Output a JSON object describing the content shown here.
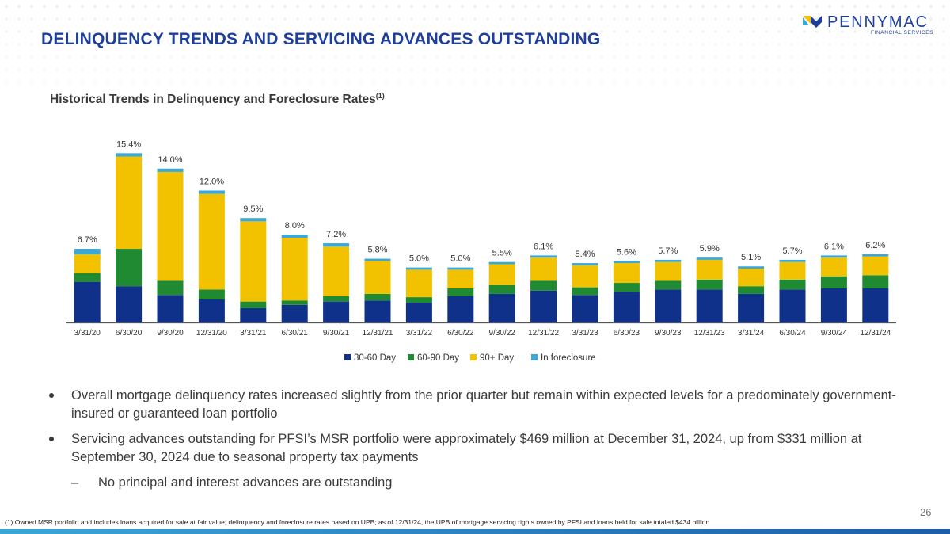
{
  "header": {
    "title": "DELINQUENCY TRENDS AND SERVICING ADVANCES OUTSTANDING",
    "logo_name": "PENNYMAC",
    "logo_sub": "FINANCIAL SERVICES"
  },
  "chart_title": {
    "text": "Historical Trends in Delinquency and Foreclosure Rates",
    "superscript": "(1)"
  },
  "chart_data": {
    "type": "bar",
    "stacked": true,
    "title": "Historical Trends in Delinquency and Foreclosure Rates(1)",
    "categories": [
      "3/31/20",
      "6/30/20",
      "9/30/20",
      "12/31/20",
      "3/31/21",
      "6/30/21",
      "9/30/21",
      "12/31/21",
      "3/31/22",
      "6/30/22",
      "9/30/22",
      "12/31/22",
      "3/31/23",
      "6/30/23",
      "9/30/23",
      "12/31/23",
      "3/31/24",
      "6/30/24",
      "9/30/24",
      "12/31/24"
    ],
    "totals_labels": [
      "6.7%",
      "15.4%",
      "14.0%",
      "12.0%",
      "9.5%",
      "8.0%",
      "7.2%",
      "5.8%",
      "5.0%",
      "5.0%",
      "5.5%",
      "6.1%",
      "5.4%",
      "5.6%",
      "5.7%",
      "5.9%",
      "5.1%",
      "5.7%",
      "6.1%",
      "6.2%"
    ],
    "totals": [
      6.7,
      15.4,
      14.0,
      12.0,
      9.5,
      8.0,
      7.2,
      5.8,
      5.0,
      5.0,
      5.5,
      6.1,
      5.4,
      5.6,
      5.7,
      5.9,
      5.1,
      5.7,
      6.1,
      6.2
    ],
    "series": [
      {
        "name": "30-60 Day",
        "color": "#10318a",
        "values": [
          3.7,
          3.3,
          2.5,
          2.1,
          1.3,
          1.6,
          1.9,
          2.0,
          1.8,
          2.4,
          2.6,
          2.9,
          2.5,
          2.8,
          3.0,
          3.0,
          2.6,
          3.0,
          3.1,
          3.1
        ]
      },
      {
        "name": "60-90 Day",
        "color": "#1f8a32",
        "values": [
          0.8,
          3.4,
          1.3,
          0.9,
          0.6,
          0.4,
          0.5,
          0.6,
          0.5,
          0.7,
          0.8,
          0.9,
          0.7,
          0.8,
          0.8,
          0.9,
          0.7,
          0.9,
          1.1,
          1.2
        ]
      },
      {
        "name": "90+ Day",
        "color": "#f2c200",
        "values": [
          1.7,
          8.4,
          9.9,
          8.7,
          7.3,
          5.7,
          4.5,
          3.0,
          2.5,
          1.7,
          1.9,
          2.1,
          2.0,
          1.8,
          1.7,
          1.8,
          1.6,
          1.6,
          1.7,
          1.7
        ]
      },
      {
        "name": "In foreclosure",
        "color": "#3aa8d8",
        "values": [
          0.5,
          0.3,
          0.3,
          0.3,
          0.3,
          0.3,
          0.3,
          0.2,
          0.2,
          0.2,
          0.2,
          0.2,
          0.2,
          0.2,
          0.2,
          0.2,
          0.2,
          0.2,
          0.2,
          0.2
        ]
      }
    ],
    "ylim": [
      0,
      16
    ],
    "legend_position": "bottom-center",
    "grid": false
  },
  "bullets": [
    "Overall mortgage delinquency rates increased slightly from the prior quarter but remain within expected levels for a predominately government-insured or guaranteed loan portfolio",
    "Servicing advances outstanding for PFSI’s MSR portfolio were approximately $469 million at December 31, 2024, up from $331 million at September 30, 2024 due to seasonal property tax payments"
  ],
  "sub_bullet": "No principal and interest advances are outstanding",
  "sub_bullet_marker": "–",
  "footnote": "(1) Owned MSR portfolio and includes loans acquired for sale at fair value; delinquency and foreclosure rates based on UPB; as of 12/31/24, the UPB of mortgage servicing rights owned by PFSI and loans held for sale totaled $434 billion",
  "page_number": "26"
}
